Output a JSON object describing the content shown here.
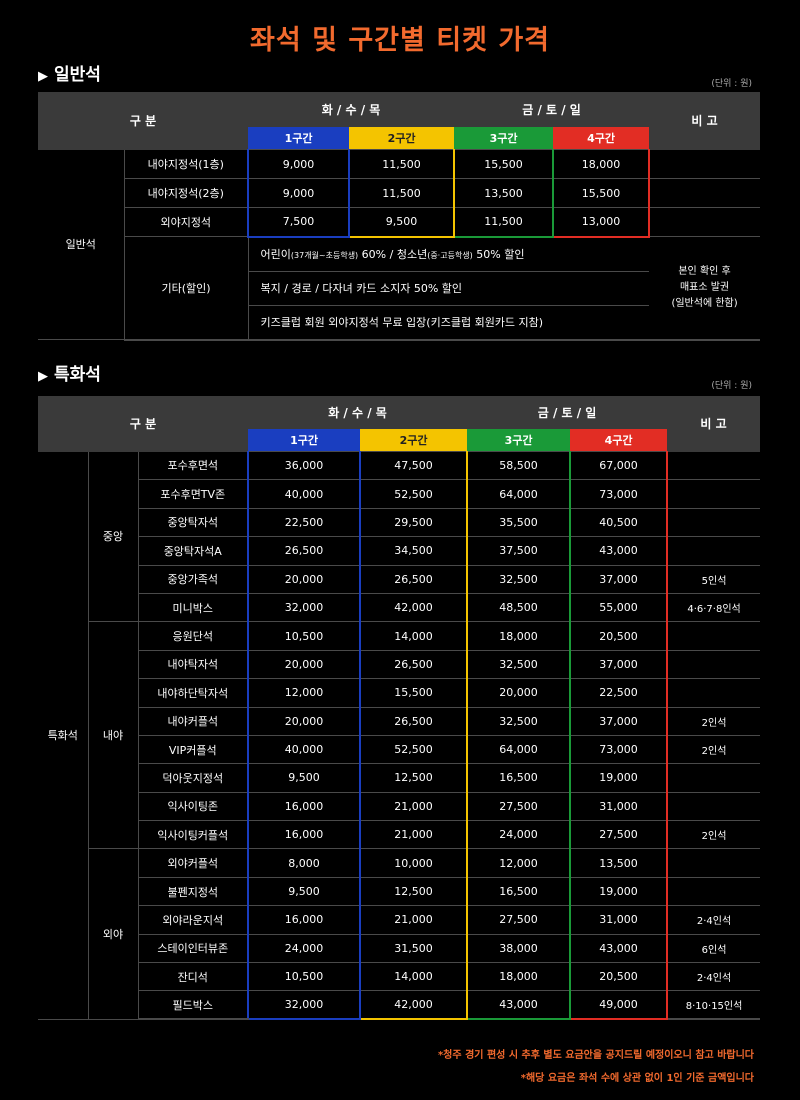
{
  "title": "좌석 및 구간별 티켓 가격",
  "unit": "(단위 : 원)",
  "general": {
    "heading": "일반석",
    "header": {
      "category": "구 분",
      "weekday": "화 / 수 / 목",
      "weekend": "금 / 토 / 일",
      "note": "비 고"
    },
    "zones": [
      "1구간",
      "2구간",
      "3구간",
      "4구간"
    ],
    "group_label": "일반석",
    "rows": [
      {
        "name": "내야지정석(1층)",
        "p1": "9,000",
        "p2": "11,500",
        "p3": "15,500",
        "p4": "18,000"
      },
      {
        "name": "내야지정석(2층)",
        "p1": "9,000",
        "p2": "11,500",
        "p3": "13,500",
        "p4": "15,500"
      },
      {
        "name": "외야지정석",
        "p1": "7,500",
        "p2": "9,500",
        "p3": "11,500",
        "p4": "13,000"
      }
    ],
    "discount": {
      "label": "기타(할인)",
      "line1_a": "어린이",
      "line1_b": "(37개월~초등학생)",
      "line1_c": " 60% / 청소년",
      "line1_d": "(중·고등학생)",
      "line1_e": " 50% 할인",
      "line2": "복지 / 경로 / 다자녀 카드 소지자 50% 할인",
      "line3": "키즈클럽 회원 외야지정석 무료 입장(키즈클럽 회원카드 지참)",
      "note1": "본인 확인 후",
      "note2": "매표소 발권",
      "note3": "(일반석에 한함)"
    }
  },
  "special": {
    "heading": "특화석",
    "header": {
      "category": "구 분",
      "weekday": "화 / 수 / 목",
      "weekend": "금 / 토 / 일",
      "note": "비 고"
    },
    "zones": [
      "1구간",
      "2구간",
      "3구간",
      "4구간"
    ],
    "group_label": "특화석",
    "groups": [
      {
        "label": "중앙",
        "rows": [
          {
            "name": "포수후면석",
            "p1": "36,000",
            "p2": "47,500",
            "p3": "58,500",
            "p4": "67,000",
            "note": ""
          },
          {
            "name": "포수후면TV존",
            "p1": "40,000",
            "p2": "52,500",
            "p3": "64,000",
            "p4": "73,000",
            "note": ""
          },
          {
            "name": "중앙탁자석",
            "p1": "22,500",
            "p2": "29,500",
            "p3": "35,500",
            "p4": "40,500",
            "note": ""
          },
          {
            "name": "중앙탁자석A",
            "p1": "26,500",
            "p2": "34,500",
            "p3": "37,500",
            "p4": "43,000",
            "note": ""
          },
          {
            "name": "중앙가족석",
            "p1": "20,000",
            "p2": "26,500",
            "p3": "32,500",
            "p4": "37,000",
            "note": "5인석"
          },
          {
            "name": "미니박스",
            "p1": "32,000",
            "p2": "42,000",
            "p3": "48,500",
            "p4": "55,000",
            "note": "4·6·7·8인석"
          }
        ]
      },
      {
        "label": "내야",
        "rows": [
          {
            "name": "응원단석",
            "p1": "10,500",
            "p2": "14,000",
            "p3": "18,000",
            "p4": "20,500",
            "note": ""
          },
          {
            "name": "내야탁자석",
            "p1": "20,000",
            "p2": "26,500",
            "p3": "32,500",
            "p4": "37,000",
            "note": ""
          },
          {
            "name": "내야하단탁자석",
            "p1": "12,000",
            "p2": "15,500",
            "p3": "20,000",
            "p4": "22,500",
            "note": ""
          },
          {
            "name": "내야커플석",
            "p1": "20,000",
            "p2": "26,500",
            "p3": "32,500",
            "p4": "37,000",
            "note": "2인석"
          },
          {
            "name": "VIP커플석",
            "p1": "40,000",
            "p2": "52,500",
            "p3": "64,000",
            "p4": "73,000",
            "note": "2인석"
          },
          {
            "name": "덕아웃지정석",
            "p1": "9,500",
            "p2": "12,500",
            "p3": "16,500",
            "p4": "19,000",
            "note": ""
          },
          {
            "name": "익사이팅존",
            "p1": "16,000",
            "p2": "21,000",
            "p3": "27,500",
            "p4": "31,000",
            "note": ""
          },
          {
            "name": "익사이팅커플석",
            "p1": "16,000",
            "p2": "21,000",
            "p3": "24,000",
            "p4": "27,500",
            "note": "2인석"
          }
        ]
      },
      {
        "label": "외야",
        "rows": [
          {
            "name": "외야커플석",
            "p1": "8,000",
            "p2": "10,000",
            "p3": "12,000",
            "p4": "13,500",
            "note": ""
          },
          {
            "name": "불펜지정석",
            "p1": "9,500",
            "p2": "12,500",
            "p3": "16,500",
            "p4": "19,000",
            "note": ""
          },
          {
            "name": "외야라운지석",
            "p1": "16,000",
            "p2": "21,000",
            "p3": "27,500",
            "p4": "31,000",
            "note": "2·4인석"
          },
          {
            "name": "스테이인터뷰존",
            "p1": "24,000",
            "p2": "31,500",
            "p3": "38,000",
            "p4": "43,000",
            "note": "6인석"
          },
          {
            "name": "잔디석",
            "p1": "10,500",
            "p2": "14,000",
            "p3": "18,000",
            "p4": "20,500",
            "note": "2·4인석"
          },
          {
            "name": "필드박스",
            "p1": "32,000",
            "p2": "42,000",
            "p3": "43,000",
            "p4": "49,000",
            "note": "8·10·15인석"
          }
        ]
      }
    ]
  },
  "notes": [
    "*청주 경기 편성 시 추후 별도 요금안을 공지드릴 예정이오니 참고 바랍니다",
    "*해당 요금은 좌석 수에 상관 없이 1인 기준 금액입니다"
  ]
}
